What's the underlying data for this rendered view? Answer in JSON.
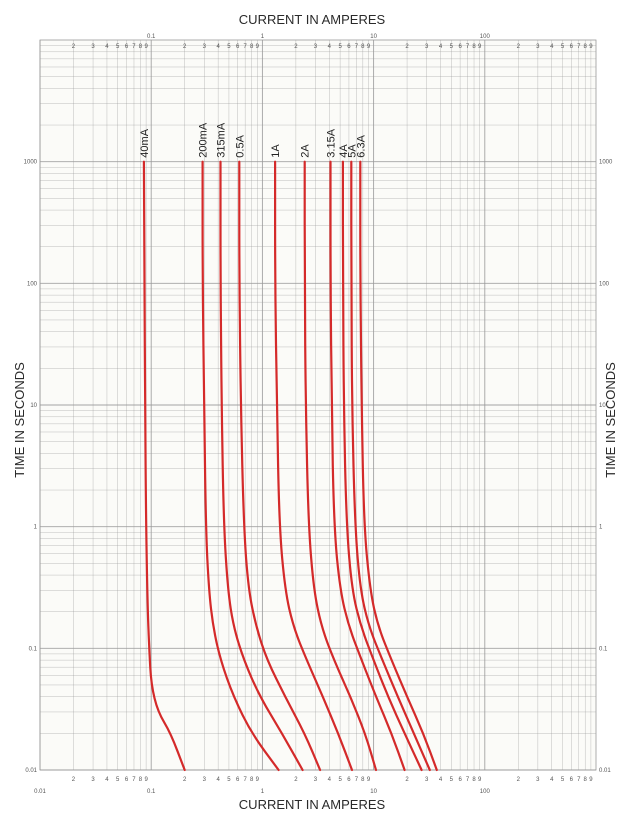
{
  "chart_data": {
    "type": "line",
    "title": "",
    "xlabel": "CURRENT IN AMPERES",
    "ylabel": "TIME IN SECONDS",
    "x_scale": "log",
    "y_scale": "log",
    "xlim": [
      0.01,
      1000
    ],
    "ylim": [
      0.01,
      10000
    ],
    "grid": true,
    "line_color": "#d42a2a",
    "grid_color": "#9a9a9a",
    "x_decade_labels_top": [
      "0.1",
      "1",
      "10",
      "100"
    ],
    "x_decade_labels_bottom": [
      "0.01",
      "0.1",
      "1",
      "10",
      "100"
    ],
    "x_minor_labels": [
      "2",
      "3",
      "4",
      "5",
      "6",
      "7",
      "8",
      "9"
    ],
    "y_labels_left": [
      "1000",
      "100",
      "10",
      "1",
      "0.1",
      "0.01"
    ],
    "y_labels_right": [
      "1000",
      "100",
      "10",
      "1",
      "0.1",
      "0.01"
    ],
    "series": [
      {
        "name": "40mA",
        "x": [
          0.086,
          0.087,
          0.088,
          0.09,
          0.093,
          0.096,
          0.1,
          0.115,
          0.15,
          0.2
        ],
        "y": [
          1000,
          100,
          10,
          1,
          0.2,
          0.1,
          0.05,
          0.03,
          0.02,
          0.01
        ]
      },
      {
        "name": "200mA",
        "x": [
          0.29,
          0.29,
          0.3,
          0.31,
          0.33,
          0.36,
          0.42,
          0.55,
          0.8,
          1.4
        ],
        "y": [
          1000,
          100,
          10,
          1,
          0.3,
          0.15,
          0.08,
          0.04,
          0.02,
          0.01
        ]
      },
      {
        "name": "315mA",
        "x": [
          0.42,
          0.42,
          0.43,
          0.45,
          0.49,
          0.55,
          0.68,
          0.95,
          1.5,
          2.3
        ],
        "y": [
          1000,
          100,
          10,
          1,
          0.3,
          0.15,
          0.08,
          0.04,
          0.02,
          0.01
        ]
      },
      {
        "name": "0.5A",
        "x": [
          0.62,
          0.62,
          0.64,
          0.68,
          0.75,
          0.88,
          1.1,
          1.6,
          2.4,
          3.3
        ],
        "y": [
          1000,
          100,
          10,
          1,
          0.3,
          0.15,
          0.08,
          0.04,
          0.02,
          0.01
        ]
      },
      {
        "name": "1A",
        "x": [
          1.3,
          1.3,
          1.35,
          1.42,
          1.6,
          1.9,
          2.5,
          3.5,
          4.8,
          6.4
        ],
        "y": [
          1000,
          100,
          10,
          1,
          0.3,
          0.15,
          0.08,
          0.04,
          0.02,
          0.01
        ]
      },
      {
        "name": "2A",
        "x": [
          2.4,
          2.4,
          2.45,
          2.6,
          2.9,
          3.4,
          4.4,
          6.2,
          8.4,
          10.5
        ],
        "y": [
          1000,
          100,
          10,
          1,
          0.3,
          0.15,
          0.08,
          0.04,
          0.02,
          0.01
        ]
      },
      {
        "name": "3.15A",
        "x": [
          4.1,
          4.1,
          4.2,
          4.4,
          5.0,
          6.0,
          7.8,
          10.5,
          14.5,
          19
        ],
        "y": [
          1000,
          100,
          10,
          1,
          0.3,
          0.15,
          0.08,
          0.04,
          0.02,
          0.01
        ]
      },
      {
        "name": "4A",
        "x": [
          5.3,
          5.3,
          5.4,
          5.7,
          6.4,
          7.7,
          10,
          13.5,
          19,
          27
        ],
        "y": [
          1000,
          100,
          10,
          1,
          0.3,
          0.15,
          0.08,
          0.04,
          0.02,
          0.01
        ]
      },
      {
        "name": "5A",
        "x": [
          6.3,
          6.3,
          6.4,
          6.8,
          7.6,
          9.1,
          12,
          16.5,
          23,
          32
        ],
        "y": [
          1000,
          100,
          10,
          1,
          0.3,
          0.15,
          0.08,
          0.04,
          0.02,
          0.01
        ]
      },
      {
        "name": "6.3A",
        "x": [
          7.6,
          7.6,
          7.8,
          8.2,
          9.3,
          11,
          14.5,
          20,
          28,
          37
        ],
        "y": [
          1000,
          100,
          10,
          1,
          0.3,
          0.15,
          0.08,
          0.04,
          0.02,
          0.01
        ]
      }
    ]
  }
}
